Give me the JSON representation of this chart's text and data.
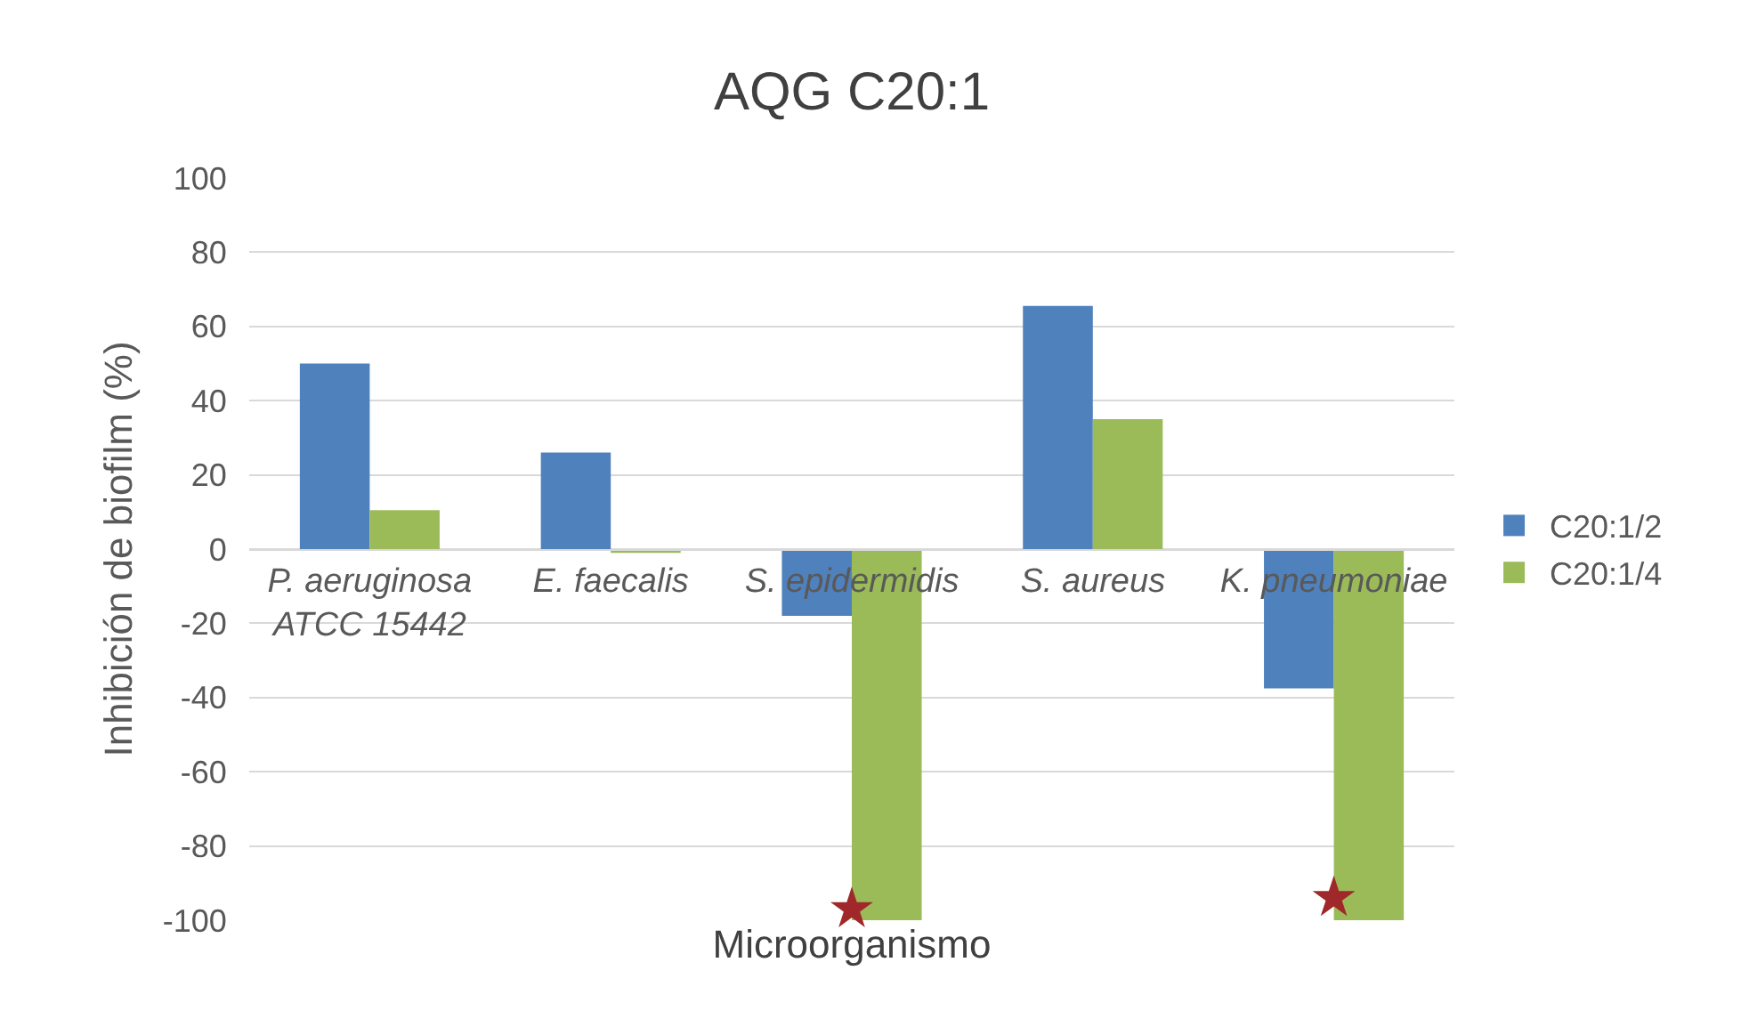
{
  "chart_data": {
    "type": "bar",
    "title": "AQG C20:1",
    "xlabel": "Microorganismo",
    "ylabel": "Inhibición de biofilm (%)",
    "categories": [
      "P. aeruginosa ATCC 15442",
      "E. faecalis",
      "S. epidermidis",
      "S. aureus",
      "K. pneumoniae"
    ],
    "series": [
      {
        "name": "C20:1/2",
        "color": "#4f81bd",
        "values": [
          50,
          26,
          -18,
          65.5,
          -37.5
        ]
      },
      {
        "name": "C20:1/4",
        "color": "#9bbb59",
        "values": [
          10.5,
          -1,
          -100,
          35,
          -100
        ]
      },
      {
        "type": "scatter",
        "color": "#a0282a",
        "marker": "star",
        "x": [
          "S. epidermidis",
          "K. pneumoniae"
        ],
        "values": [
          -97,
          -94
        ]
      }
    ],
    "ylim": [
      -100,
      100
    ],
    "yticks": [
      -100,
      -80,
      -60,
      -40,
      -20,
      0,
      20,
      40,
      60,
      80,
      100
    ],
    "grid": "y",
    "legend": "right"
  }
}
